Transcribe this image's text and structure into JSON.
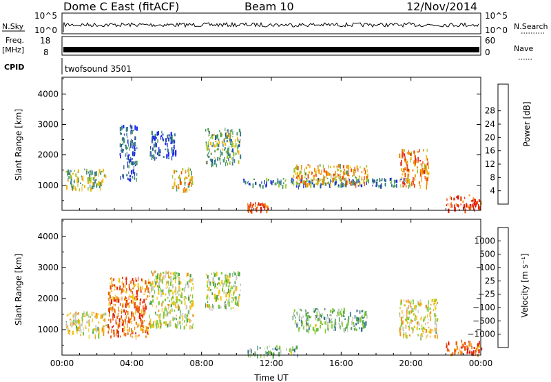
{
  "header": {
    "station": "Dome C East (fitACF)",
    "beam": "Beam 10",
    "date": "12/Nov/2014"
  },
  "status_panels": {
    "nsky": {
      "label": "N.Sky",
      "ticks": [
        "10^5",
        "10^0"
      ],
      "right_ticks": [
        "10^5",
        "10^0"
      ],
      "right_label": "N.Search"
    },
    "freq": {
      "label_line1": "Freq.",
      "label_line2": "[MHz]",
      "ticks": [
        "18",
        "8"
      ],
      "right_ticks": [
        "60",
        "0"
      ],
      "right_label": "Nave"
    },
    "cpid": {
      "label": "CPID",
      "program": "twofsound 3501"
    }
  },
  "colors": {
    "power_scale": [
      "#1c27f0",
      "#23539e",
      "#3f7d8f",
      "#4a9a63",
      "#9ec32b",
      "#f2b60a",
      "#f08a0a",
      "#ec4a0a",
      "#e31b0a"
    ],
    "velocity_scale": [
      "#2531b8",
      "#2f6f86",
      "#48a24e",
      "#7fcb2f",
      "#c9c9c1",
      "#f0c20f",
      "#f0931b",
      "#ec5f10",
      "#e31b0a"
    ]
  },
  "chart_data": [
    {
      "type": "heatmap",
      "title": "",
      "xlabel": "",
      "ylabel": "Slant Range [km]",
      "x_ticks": [
        "00:00",
        "04:00",
        "08:00",
        "12:00",
        "16:00",
        "20:00",
        "00:00"
      ],
      "y_ticks": [
        "1000",
        "2000",
        "3000",
        "4000"
      ],
      "ylim": [
        180,
        4550
      ],
      "colorbar": {
        "label": "Power [dB]",
        "ticks": [
          "4",
          "8",
          "12",
          "16",
          "20",
          "24",
          "28"
        ]
      },
      "series": [
        {
          "x": [
            0.2,
            2.5
          ],
          "y": [
            900,
            1550
          ],
          "level": 0.45
        },
        {
          "x": [
            3.3,
            4.3
          ],
          "y": [
            1200,
            3000
          ],
          "level": 0.2
        },
        {
          "x": [
            5.0,
            6.5
          ],
          "y": [
            1900,
            2800
          ],
          "level": 0.15
        },
        {
          "x": [
            6.3,
            7.5
          ],
          "y": [
            850,
            1600
          ],
          "level": 0.6
        },
        {
          "x": [
            8.2,
            10.2
          ],
          "y": [
            1700,
            2900
          ],
          "level": 0.4
        },
        {
          "x": [
            10.6,
            11.8
          ],
          "y": [
            200,
            450
          ],
          "level": 0.9
        },
        {
          "x": [
            10.3,
            20.0
          ],
          "y": [
            1000,
            1250
          ],
          "level": 0.25
        },
        {
          "x": [
            13.2,
            17.5
          ],
          "y": [
            1050,
            1700
          ],
          "level": 0.65
        },
        {
          "x": [
            19.3,
            21.0
          ],
          "y": [
            1000,
            2200
          ],
          "level": 0.75
        },
        {
          "x": [
            22.0,
            24.0
          ],
          "y": [
            220,
            700
          ],
          "level": 0.9
        }
      ]
    },
    {
      "type": "heatmap",
      "title": "",
      "xlabel": "Time UT",
      "ylabel": "Slant Range [km]",
      "x_ticks": [
        "00:00",
        "04:00",
        "08:00",
        "12:00",
        "16:00",
        "20:00",
        "00:00"
      ],
      "y_ticks": [
        "1000",
        "2000",
        "3000",
        "4000"
      ],
      "ylim": [
        180,
        4550
      ],
      "colorbar": {
        "label": "Velocity [m s⁻¹]",
        "ticks": [
          "1000",
          "500",
          "100",
          "25",
          "−25",
          "−100",
          "−500",
          "−1000"
        ]
      },
      "series": [
        {
          "x": [
            0.2,
            2.5
          ],
          "y": [
            800,
            1600
          ],
          "level": 0.55
        },
        {
          "x": [
            2.6,
            5.0
          ],
          "y": [
            800,
            2700
          ],
          "level": 0.8
        },
        {
          "x": [
            5.0,
            7.5
          ],
          "y": [
            1100,
            2900
          ],
          "level": 0.5
        },
        {
          "x": [
            8.2,
            10.2
          ],
          "y": [
            1700,
            2900
          ],
          "level": 0.45
        },
        {
          "x": [
            10.6,
            13.5
          ],
          "y": [
            200,
            500
          ],
          "level": 0.35
        },
        {
          "x": [
            13.2,
            17.5
          ],
          "y": [
            1000,
            1700
          ],
          "level": 0.35
        },
        {
          "x": [
            19.3,
            21.5
          ],
          "y": [
            800,
            2000
          ],
          "level": 0.55
        },
        {
          "x": [
            22.0,
            24.0
          ],
          "y": [
            220,
            700
          ],
          "level": 0.85
        }
      ]
    }
  ]
}
